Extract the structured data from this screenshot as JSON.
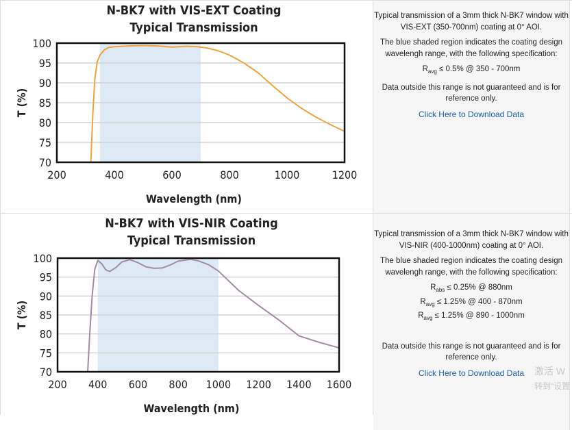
{
  "chart_data": [
    {
      "type": "line",
      "title": [
        "N-BK7 with VIS-EXT Coating",
        "Typical Transmission"
      ],
      "xlabel": "Wavelength (nm)",
      "ylabel": "T (%)",
      "xlim": [
        200,
        1200
      ],
      "ylim": [
        70,
        100
      ],
      "xticks": [
        200,
        400,
        600,
        800,
        1000,
        1200
      ],
      "yticks": [
        70,
        75,
        80,
        85,
        90,
        95,
        100
      ],
      "grid": "horizontal",
      "shaded_range": [
        350,
        700
      ],
      "shade_color": "#dde9f5",
      "line_color": "#f0a43c",
      "x": [
        318,
        325,
        332,
        340,
        350,
        365,
        380,
        400,
        450,
        500,
        550,
        600,
        650,
        690,
        720,
        760,
        800,
        850,
        900,
        950,
        1000,
        1050,
        1100,
        1150,
        1200
      ],
      "y": [
        70,
        82,
        91,
        95.2,
        97,
        98.3,
        98.9,
        99.1,
        99.3,
        99.4,
        99.3,
        99.0,
        99.2,
        99.1,
        98.8,
        98.1,
        97,
        95,
        92.5,
        89.3,
        86.2,
        83.6,
        81.4,
        79.5,
        77.8
      ]
    },
    {
      "type": "line",
      "title": [
        "N-BK7 with VIS-NIR Coating",
        "Typical Transmission"
      ],
      "xlabel": "Wavelength (nm)",
      "ylabel": "T (%)",
      "xlim": [
        200,
        1600
      ],
      "ylim": [
        70,
        100
      ],
      "xticks": [
        200,
        400,
        600,
        800,
        1000,
        1200,
        1400,
        1600
      ],
      "yticks": [
        70,
        75,
        80,
        85,
        90,
        95,
        100
      ],
      "grid": "horizontal",
      "shaded_range": [
        400,
        1000
      ],
      "shade_color": "#dde9f5",
      "line_color": "#a48aa6",
      "x": [
        350,
        360,
        372,
        385,
        400,
        420,
        440,
        460,
        490,
        520,
        560,
        600,
        640,
        680,
        720,
        760,
        800,
        860,
        900,
        950,
        1000,
        1100,
        1200,
        1300,
        1400,
        1500,
        1600
      ],
      "y": [
        70,
        80,
        90,
        97,
        99.4,
        98.5,
        96.9,
        96.5,
        97.5,
        99,
        99.6,
        98.8,
        97.7,
        97.3,
        97.4,
        98.2,
        99.2,
        99.7,
        99.3,
        98.3,
        96.6,
        91.5,
        87.5,
        83.7,
        79.5,
        77.8,
        76.3
      ]
    }
  ],
  "panels": [
    {
      "desc": "Typical transmission of a 3mm thick N-BK7 window with VIS-EXT (350-700nm) coating at 0° AOI.",
      "shade": "The blue shaded region indicates the coating design wavelengh range, with the following specification:",
      "specs": [
        {
          "r": "R",
          "sub": "avg",
          "text": "≤ 0.5% @ 350 - 700nm"
        }
      ],
      "note": "Data outside this range is not guaranteed and is for reference only.",
      "link": "Click Here to Download Data"
    },
    {
      "desc": "Typical transmission of a 3mm thick N-BK7 window with VIS-NIR (400-1000nm) coating at 0° AOI.",
      "shade": "The blue shaded region indicates the coating design wavelengh range, with the following specification:",
      "specs": [
        {
          "r": "R",
          "sub": "abs",
          "text": "≤ 0.25% @ 880nm"
        },
        {
          "r": "R",
          "sub": "avg",
          "text": "≤ 1.25% @ 400 - 870nm"
        },
        {
          "r": "R",
          "sub": "avg",
          "text": "≤ 1.25% @ 890 - 1000nm"
        }
      ],
      "note": "Data outside this range is not guaranteed and is for reference only.",
      "link": "Click Here to Download Data"
    }
  ],
  "watermark": [
    "激活 W",
    "转到“设置"
  ]
}
